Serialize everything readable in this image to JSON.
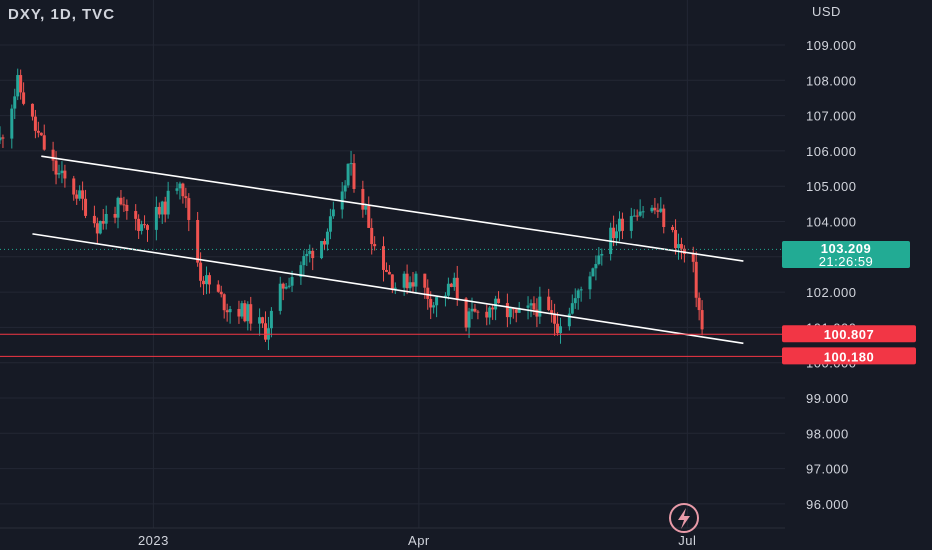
{
  "header": {
    "symbol_title": "DXY, 1D, TVC"
  },
  "currency_label": "USD",
  "colors": {
    "background": "#161a25",
    "grid": "#232734",
    "up": "#26a69a",
    "down": "#ef5350",
    "line": "#ffffff",
    "axis_text": "#d1d4dc",
    "current_badge": "#22ab94",
    "level_line": "#f23645",
    "level_badge": "#f23645",
    "logo": "#e89aa8"
  },
  "logo_icon": "lightning-bolt-icon",
  "chart_data": {
    "type": "candlestick",
    "title": "DXY, 1D, TVC",
    "x_tick_labels": [
      "2023",
      "Apr",
      "Jul"
    ],
    "y_ticks": [
      96,
      97,
      98,
      99,
      100,
      101,
      102,
      103,
      104,
      105,
      106,
      107,
      108,
      109
    ],
    "y_tick_labels": [
      "96.000",
      "97.000",
      "98.000",
      "99.000",
      "100.000",
      "101.000",
      "102.000",
      "103.000",
      "104.000",
      "105.000",
      "106.000",
      "107.000",
      "108.000",
      "109.000"
    ],
    "ylim": [
      95.4,
      110.1
    ],
    "x_range": [
      "2022-11-10",
      "2023-07-20"
    ],
    "grid": true,
    "current_price": {
      "value": 103.209,
      "label": "103.209",
      "countdown": "21:26:59"
    },
    "horizontal_levels": [
      {
        "value": 100.807,
        "label": "100.807"
      },
      {
        "value": 100.18,
        "label": "100.180"
      }
    ],
    "trend_lines": [
      {
        "from": [
          "2022-11-24",
          105.85
        ],
        "to": [
          "2023-07-20",
          102.88
        ]
      },
      {
        "from": [
          "2022-11-21",
          103.65
        ],
        "to": [
          "2023-07-20",
          100.55
        ]
      }
    ],
    "anchors": [
      [
        "2022-11-10",
        106.3
      ],
      [
        "2022-11-16",
        107.9
      ],
      [
        "2022-11-22",
        106.6
      ],
      [
        "2022-11-29",
        105.4
      ],
      [
        "2022-12-06",
        104.8
      ],
      [
        "2022-12-13",
        103.9
      ],
      [
        "2022-12-20",
        104.4
      ],
      [
        "2022-12-28",
        103.9
      ],
      [
        "2023-01-04",
        104.3
      ],
      [
        "2023-01-10",
        105.3
      ],
      [
        "2023-01-17",
        102.5
      ],
      [
        "2023-01-26",
        101.6
      ],
      [
        "2023-02-02",
        101.4
      ],
      [
        "2023-02-08",
        100.9
      ],
      [
        "2023-02-14",
        102.2
      ],
      [
        "2023-02-21",
        102.9
      ],
      [
        "2023-02-28",
        103.6
      ],
      [
        "2023-03-06",
        104.6
      ],
      [
        "2023-03-08",
        105.6
      ],
      [
        "2023-03-14",
        104.3
      ],
      [
        "2023-03-17",
        103.3
      ],
      [
        "2023-03-24",
        102.2
      ],
      [
        "2023-03-31",
        102.4
      ],
      [
        "2023-04-06",
        101.7
      ],
      [
        "2023-04-13",
        102.2
      ],
      [
        "2023-04-17",
        101.2
      ],
      [
        "2023-04-26",
        101.6
      ],
      [
        "2023-05-04",
        101.3
      ],
      [
        "2023-05-12",
        101.6
      ],
      [
        "2023-05-18",
        101.1
      ],
      [
        "2023-05-25",
        101.9
      ],
      [
        "2023-06-02",
        103.3
      ],
      [
        "2023-06-09",
        104.0
      ],
      [
        "2023-06-14",
        104.4
      ],
      [
        "2023-06-21",
        104.3
      ],
      [
        "2023-06-26",
        103.6
      ],
      [
        "2023-07-03",
        102.6
      ],
      [
        "2023-07-06",
        100.9
      ]
    ]
  }
}
